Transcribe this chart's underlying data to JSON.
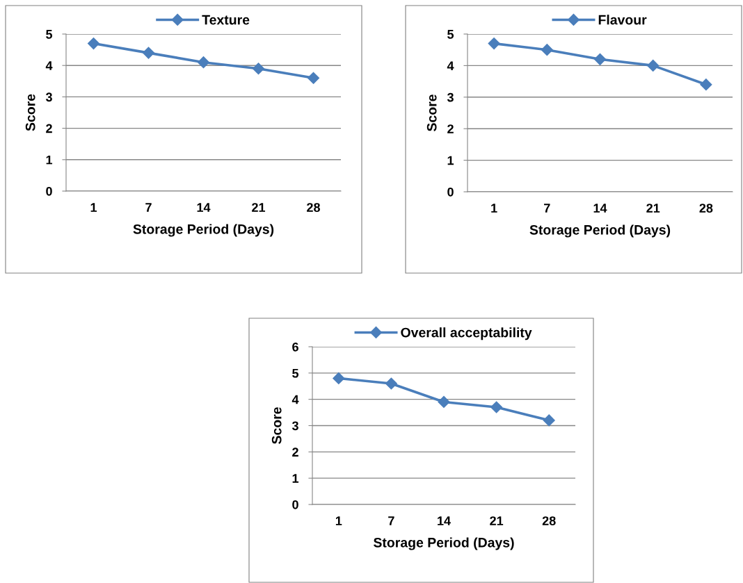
{
  "chart_data": [
    {
      "type": "line",
      "categories": [
        "1",
        "7",
        "14",
        "21",
        "28"
      ],
      "xlabel": "Storage Period (Days)",
      "ylabel": "Score",
      "ylim": [
        0,
        5
      ],
      "yticks": [
        0,
        1,
        2,
        3,
        4,
        5
      ],
      "grid": "y",
      "legend": "top",
      "marker": "diamond",
      "line_style": "solid",
      "series": [
        {
          "name": "Texture",
          "color": "#4a7ebb",
          "values": [
            4.7,
            4.4,
            4.1,
            3.9,
            3.6
          ]
        }
      ]
    },
    {
      "type": "line",
      "categories": [
        "1",
        "7",
        "14",
        "21",
        "28"
      ],
      "xlabel": "Storage Period (Days)",
      "ylabel": "Score",
      "ylim": [
        0,
        5
      ],
      "yticks": [
        0,
        1,
        2,
        3,
        4,
        5
      ],
      "grid": "y",
      "legend": "top",
      "marker": "diamond",
      "line_style": "solid",
      "series": [
        {
          "name": "Flavour",
          "color": "#4a7ebb",
          "values": [
            4.7,
            4.5,
            4.2,
            4.0,
            3.4
          ]
        }
      ]
    },
    {
      "type": "line",
      "categories": [
        "1",
        "7",
        "14",
        "21",
        "28"
      ],
      "xlabel": "Storage Period (Days)",
      "ylabel": "Score",
      "ylim": [
        0,
        6
      ],
      "yticks": [
        0,
        1,
        2,
        3,
        4,
        5,
        6
      ],
      "grid": "y",
      "legend": "top",
      "marker": "diamond",
      "line_style": "solid",
      "series": [
        {
          "name": "Overall acceptability",
          "color": "#4a7ebb",
          "values": [
            4.8,
            4.6,
            3.9,
            3.7,
            3.2
          ]
        }
      ]
    }
  ]
}
